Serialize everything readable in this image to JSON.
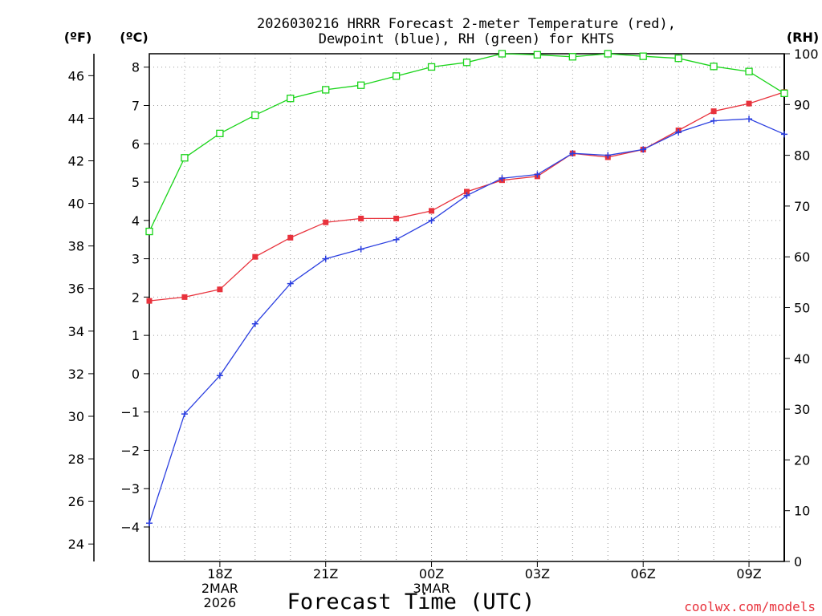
{
  "chart_data": {
    "type": "line",
    "title_line1": "2026030216 HRRR Forecast 2-meter Temperature (red),",
    "title_line2": "Dewpoint (blue), RH (green) for KHTS",
    "xlabel": "Forecast Time (UTC)",
    "credit": "coolwx.com/models",
    "units": {
      "fahrenheit": "(ºF)",
      "celsius": "(ºC)",
      "rh": "(RH)"
    },
    "x_hours": [
      16,
      17,
      18,
      19,
      20,
      21,
      22,
      23,
      24,
      25,
      26,
      27,
      28,
      29,
      30,
      31,
      32,
      33,
      34
    ],
    "x_range": [
      16,
      34
    ],
    "x_ticks": [
      {
        "hour": 18,
        "lines": [
          "18Z",
          "2MAR",
          "2026"
        ]
      },
      {
        "hour": 21,
        "lines": [
          "21Z"
        ]
      },
      {
        "hour": 24,
        "lines": [
          "00Z",
          "3MAR"
        ]
      },
      {
        "hour": 27,
        "lines": [
          "03Z"
        ]
      },
      {
        "hour": 30,
        "lines": [
          "06Z"
        ]
      },
      {
        "hour": 33,
        "lines": [
          "09Z"
        ]
      }
    ],
    "celsius_range": [
      -4.9,
      8.35
    ],
    "celsius_ticks": [
      "-4",
      "-3",
      "-2",
      "-1",
      "0",
      "1",
      "2",
      "3",
      "4",
      "5",
      "6",
      "7",
      "8"
    ],
    "fahrenheit_ticks": [
      "24",
      "26",
      "28",
      "30",
      "32",
      "34",
      "36",
      "38",
      "40",
      "42",
      "44",
      "46"
    ],
    "rh_range": [
      0,
      100
    ],
    "rh_ticks": [
      "0",
      "10",
      "20",
      "30",
      "40",
      "50",
      "60",
      "70",
      "80",
      "90",
      "100"
    ],
    "colors": {
      "temperature": "#e8323c",
      "dewpoint": "#2b3fe0",
      "rh": "#19d419",
      "grid": "#9a9a9a"
    },
    "series": [
      {
        "name": "Temperature",
        "unit": "C",
        "marker": "square-filled",
        "values": [
          1.9,
          2.0,
          2.2,
          3.05,
          3.55,
          3.95,
          4.05,
          4.05,
          4.25,
          4.75,
          5.05,
          5.15,
          5.75,
          5.65,
          5.85,
          6.35,
          6.85,
          7.05,
          7.35
        ]
      },
      {
        "name": "Dewpoint",
        "unit": "C",
        "marker": "plus",
        "values": [
          -3.9,
          -1.05,
          -0.05,
          1.3,
          2.35,
          3.0,
          3.25,
          3.5,
          4.0,
          4.65,
          5.1,
          5.2,
          5.75,
          5.7,
          5.85,
          6.3,
          6.6,
          6.65,
          6.25
        ]
      },
      {
        "name": "RH",
        "unit": "%",
        "marker": "square-open",
        "values": [
          65,
          79.5,
          84.3,
          87.9,
          91.2,
          92.9,
          93.8,
          95.6,
          97.4,
          98.3,
          100,
          99.8,
          99.4,
          100,
          99.5,
          99.1,
          97.5,
          96.5,
          92.2
        ]
      }
    ]
  }
}
